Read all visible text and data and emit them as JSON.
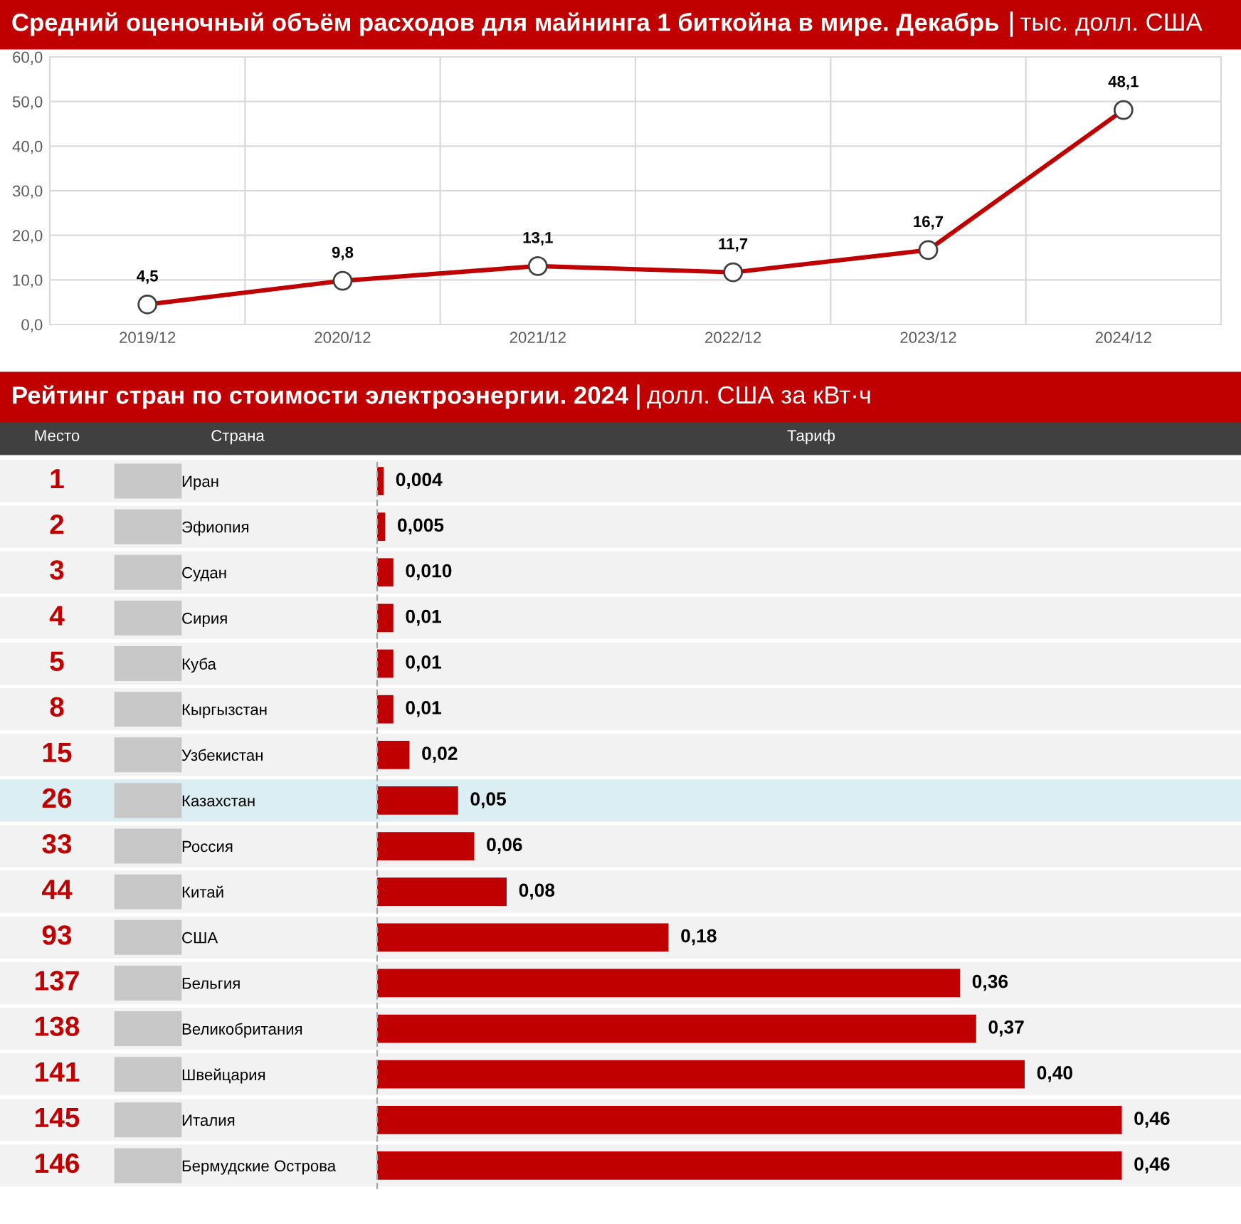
{
  "chart_data": [
    {
      "type": "line",
      "title": "Средний оценочный объём расходов для майнинга 1 биткойна в мире. Декабрь",
      "subtitle": "тыс. долл. США",
      "categories": [
        "2019/12",
        "2020/12",
        "2021/12",
        "2022/12",
        "2023/12",
        "2024/12"
      ],
      "series": [
        {
          "color": "#c00000",
          "values": [
            4.5,
            9.8,
            13.1,
            11.7,
            16.7,
            48.1
          ],
          "value_labels": [
            "4,5",
            "9,8",
            "13,1",
            "11,7",
            "16,7",
            "48,1"
          ]
        }
      ],
      "ylim": [
        0,
        60
      ],
      "yticks": [
        {
          "value": 0,
          "label": "0,0"
        },
        {
          "value": 10,
          "label": "10,0"
        },
        {
          "value": 20,
          "label": "20,0"
        },
        {
          "value": 30,
          "label": "30,0"
        },
        {
          "value": 40,
          "label": "40,0"
        },
        {
          "value": 50,
          "label": "50,0"
        },
        {
          "value": 60,
          "label": "60,0"
        }
      ],
      "grid": true,
      "marker": "circle",
      "line_style": "solid",
      "legend": false
    },
    {
      "type": "bar",
      "orientation": "horizontal",
      "title": "Рейтинг стран по стоимости электроэнергии. 2024",
      "subtitle": "долл. США за кВт·ч",
      "categories": [
        "Иран",
        "Эфиопия",
        "Судан",
        "Сирия",
        "Куба",
        "Кыргызстан",
        "Узбекистан",
        "Казахстан",
        "Россия",
        "Китай",
        "США",
        "Бельгия",
        "Великобритания",
        "Швейцария",
        "Италия",
        "Бермудские Острова"
      ],
      "values": [
        0.004,
        0.005,
        0.01,
        0.01,
        0.01,
        0.01,
        0.02,
        0.05,
        0.06,
        0.08,
        0.18,
        0.36,
        0.37,
        0.4,
        0.46,
        0.46
      ],
      "value_labels": [
        "0,004",
        "0,005",
        "0,010",
        "0,01",
        "0,01",
        "0,01",
        "0,02",
        "0,05",
        "0,06",
        "0,08",
        "0,18",
        "0,36",
        "0,37",
        "0,40",
        "0,46",
        "0,46"
      ],
      "color": "#c00000",
      "tick_labels": "y",
      "grid": false,
      "legend": false,
      "bands": [
        {
          "axis": "y",
          "from": "Казахстан",
          "to": "Казахстан",
          "color": "#daeef3"
        }
      ],
      "annotations": [
        "Место",
        "Страна",
        "Тариф",
        "1",
        "2",
        "3",
        "4",
        "5",
        "8",
        "15",
        "26",
        "33",
        "44",
        "93",
        "137",
        "138",
        "141",
        "145",
        "146"
      ]
    }
  ]
}
